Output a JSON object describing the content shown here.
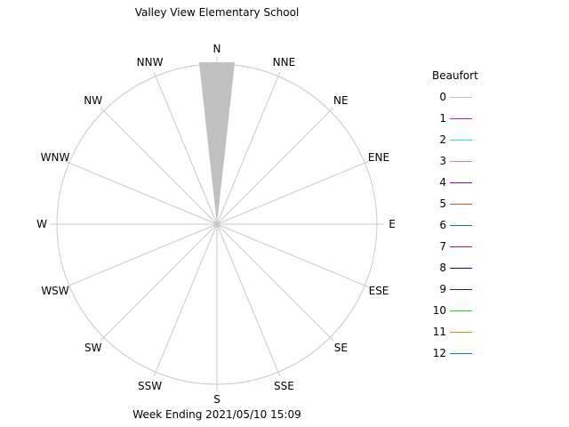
{
  "title": "Valley View Elementary School",
  "footer": "Week Ending 2021/05/10 15:09",
  "legend": {
    "title": "Beaufort",
    "items": [
      {
        "label": "0",
        "color": "#c0c0c0"
      },
      {
        "label": "1",
        "color": "#e000e0"
      },
      {
        "label": "2",
        "color": "#20e0e0"
      },
      {
        "label": "3",
        "color": "#f08080"
      },
      {
        "label": "4",
        "color": "#8000e0"
      },
      {
        "label": "5",
        "color": "#a0602a"
      },
      {
        "label": "6",
        "color": "#008080"
      },
      {
        "label": "7",
        "color": "#f01010"
      },
      {
        "label": "8",
        "color": "#0000e0"
      },
      {
        "label": "9",
        "color": "#900000"
      },
      {
        "label": "10",
        "color": "#10e010"
      },
      {
        "label": "11",
        "color": "#f08000"
      },
      {
        "label": "12",
        "color": "#0080f0"
      }
    ]
  },
  "directions": [
    "N",
    "NNE",
    "NE",
    "ENE",
    "E",
    "ESE",
    "SE",
    "SSE",
    "S",
    "SSW",
    "SW",
    "WSW",
    "W",
    "WNW",
    "NW",
    "NNW"
  ],
  "chart_data": {
    "type": "polar-bar",
    "title": "Valley View Elementary School",
    "subtitle": "Week Ending 2021/05/10 15:09",
    "legend_title": "Beaufort",
    "legend_position": "right",
    "categories": [
      "N",
      "NNE",
      "NE",
      "ENE",
      "E",
      "ESE",
      "SE",
      "SSE",
      "S",
      "SSW",
      "SW",
      "WSW",
      "W",
      "WNW",
      "NW",
      "NNW"
    ],
    "series": [
      {
        "name": "0",
        "values": [
          100,
          0,
          0,
          0,
          0,
          0,
          0,
          0,
          0,
          0,
          0,
          0,
          0,
          0,
          0,
          0
        ]
      },
      {
        "name": "1",
        "values": [
          0,
          0,
          0,
          0,
          0,
          0,
          0,
          0,
          0,
          0,
          0,
          0,
          0,
          0,
          0,
          0
        ]
      },
      {
        "name": "2",
        "values": [
          0,
          0,
          0,
          0,
          0,
          0,
          0,
          0,
          0,
          0,
          0,
          0,
          0,
          0,
          0,
          0
        ]
      },
      {
        "name": "3",
        "values": [
          0,
          0,
          0,
          0,
          0,
          0,
          0,
          0,
          0,
          0,
          0,
          0,
          0,
          0,
          0,
          0
        ]
      },
      {
        "name": "4",
        "values": [
          0,
          0,
          0,
          0,
          0,
          0,
          0,
          0,
          0,
          0,
          0,
          0,
          0,
          0,
          0,
          0
        ]
      },
      {
        "name": "5",
        "values": [
          0,
          0,
          0,
          0,
          0,
          0,
          0,
          0,
          0,
          0,
          0,
          0,
          0,
          0,
          0,
          0
        ]
      },
      {
        "name": "6",
        "values": [
          0,
          0,
          0,
          0,
          0,
          0,
          0,
          0,
          0,
          0,
          0,
          0,
          0,
          0,
          0,
          0
        ]
      },
      {
        "name": "7",
        "values": [
          0,
          0,
          0,
          0,
          0,
          0,
          0,
          0,
          0,
          0,
          0,
          0,
          0,
          0,
          0,
          0
        ]
      },
      {
        "name": "8",
        "values": [
          0,
          0,
          0,
          0,
          0,
          0,
          0,
          0,
          0,
          0,
          0,
          0,
          0,
          0,
          0,
          0
        ]
      },
      {
        "name": "9",
        "values": [
          0,
          0,
          0,
          0,
          0,
          0,
          0,
          0,
          0,
          0,
          0,
          0,
          0,
          0,
          0,
          0
        ]
      },
      {
        "name": "10",
        "values": [
          0,
          0,
          0,
          0,
          0,
          0,
          0,
          0,
          0,
          0,
          0,
          0,
          0,
          0,
          0,
          0
        ]
      },
      {
        "name": "11",
        "values": [
          0,
          0,
          0,
          0,
          0,
          0,
          0,
          0,
          0,
          0,
          0,
          0,
          0,
          0,
          0,
          0
        ]
      },
      {
        "name": "12",
        "values": [
          0,
          0,
          0,
          0,
          0,
          0,
          0,
          0,
          0,
          0,
          0,
          0,
          0,
          0,
          0,
          0
        ]
      }
    ],
    "radial_range": [
      0,
      100
    ],
    "grid": true,
    "wedge_color": "#c0c0c0",
    "grid_color": "#c8c8c8"
  }
}
